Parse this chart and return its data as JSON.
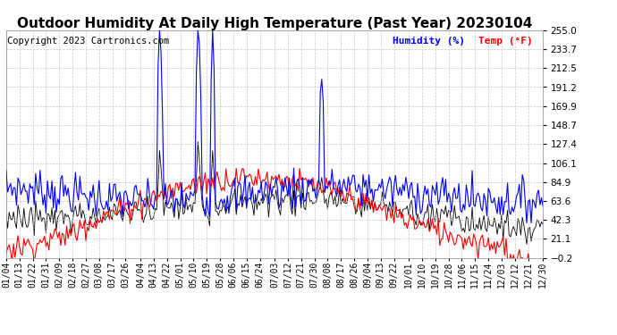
{
  "title": "Outdoor Humidity At Daily High Temperature (Past Year) 20230104",
  "copyright": "Copyright 2023 Cartronics.com",
  "legend_humidity": "Humidity (%)",
  "legend_temp": "Temp (°F)",
  "yticks": [
    255.0,
    233.7,
    212.5,
    191.2,
    169.9,
    148.7,
    127.4,
    106.1,
    84.9,
    63.6,
    42.3,
    21.1,
    -0.2
  ],
  "ymin": -0.2,
  "ymax": 255.0,
  "background_color": "#ffffff",
  "grid_color": "#c8c8c8",
  "title_fontsize": 11,
  "copyright_fontsize": 7.5,
  "legend_fontsize": 8,
  "tick_fontsize": 7.5,
  "x_labels": [
    "01/04",
    "01/13",
    "01/22",
    "01/31",
    "02/09",
    "02/18",
    "02/27",
    "03/08",
    "03/17",
    "03/26",
    "04/04",
    "04/13",
    "04/22",
    "05/01",
    "05/10",
    "05/19",
    "05/28",
    "06/06",
    "06/15",
    "06/24",
    "07/03",
    "07/12",
    "07/21",
    "07/30",
    "08/08",
    "08/17",
    "08/26",
    "09/04",
    "09/13",
    "09/22",
    "10/01",
    "10/10",
    "10/19",
    "10/28",
    "11/06",
    "11/15",
    "11/24",
    "12/03",
    "12/12",
    "12/21",
    "12/30"
  ]
}
